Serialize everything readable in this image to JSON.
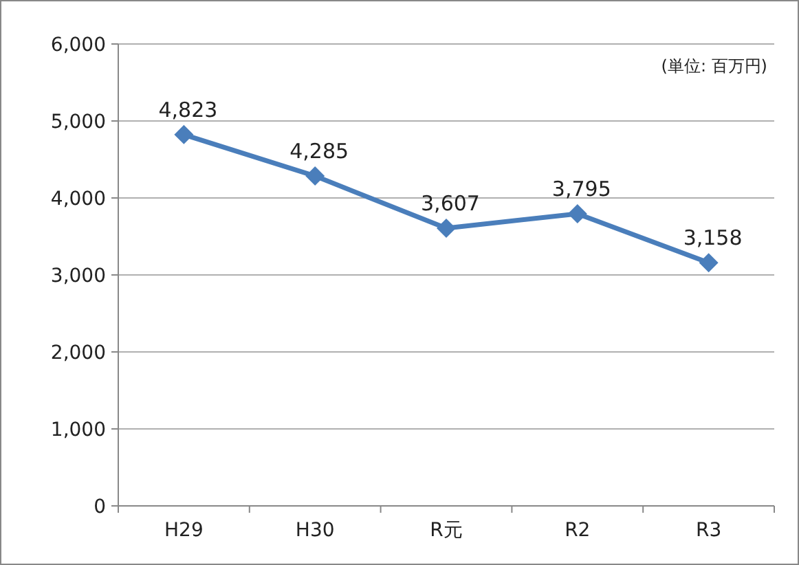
{
  "chart_data": {
    "type": "line",
    "categories": [
      "H29",
      "H30",
      "R元",
      "R2",
      "R3"
    ],
    "series": [
      {
        "color": "#4a7ebb",
        "values": [
          4823,
          4285,
          3607,
          3795,
          3158
        ],
        "value_labels": [
          "4,823",
          "4,285",
          "3,607",
          "3,795",
          "3,158"
        ]
      }
    ],
    "ylim": [
      0,
      6000
    ],
    "yticks": [
      0,
      {
        "value": 1000,
        "label": "1,000"
      },
      {
        "value": 2000,
        "label": "2,000"
      },
      {
        "value": 3000,
        "label": "3,000"
      },
      {
        "value": 4000,
        "label": "4,000"
      },
      {
        "value": 5000,
        "label": "5,000"
      },
      {
        "value": 6000,
        "label": "6,000"
      }
    ],
    "grid": "y",
    "marker": "diamond",
    "line_style": "solid",
    "annotations": [
      "(単位: 百万円)"
    ]
  }
}
